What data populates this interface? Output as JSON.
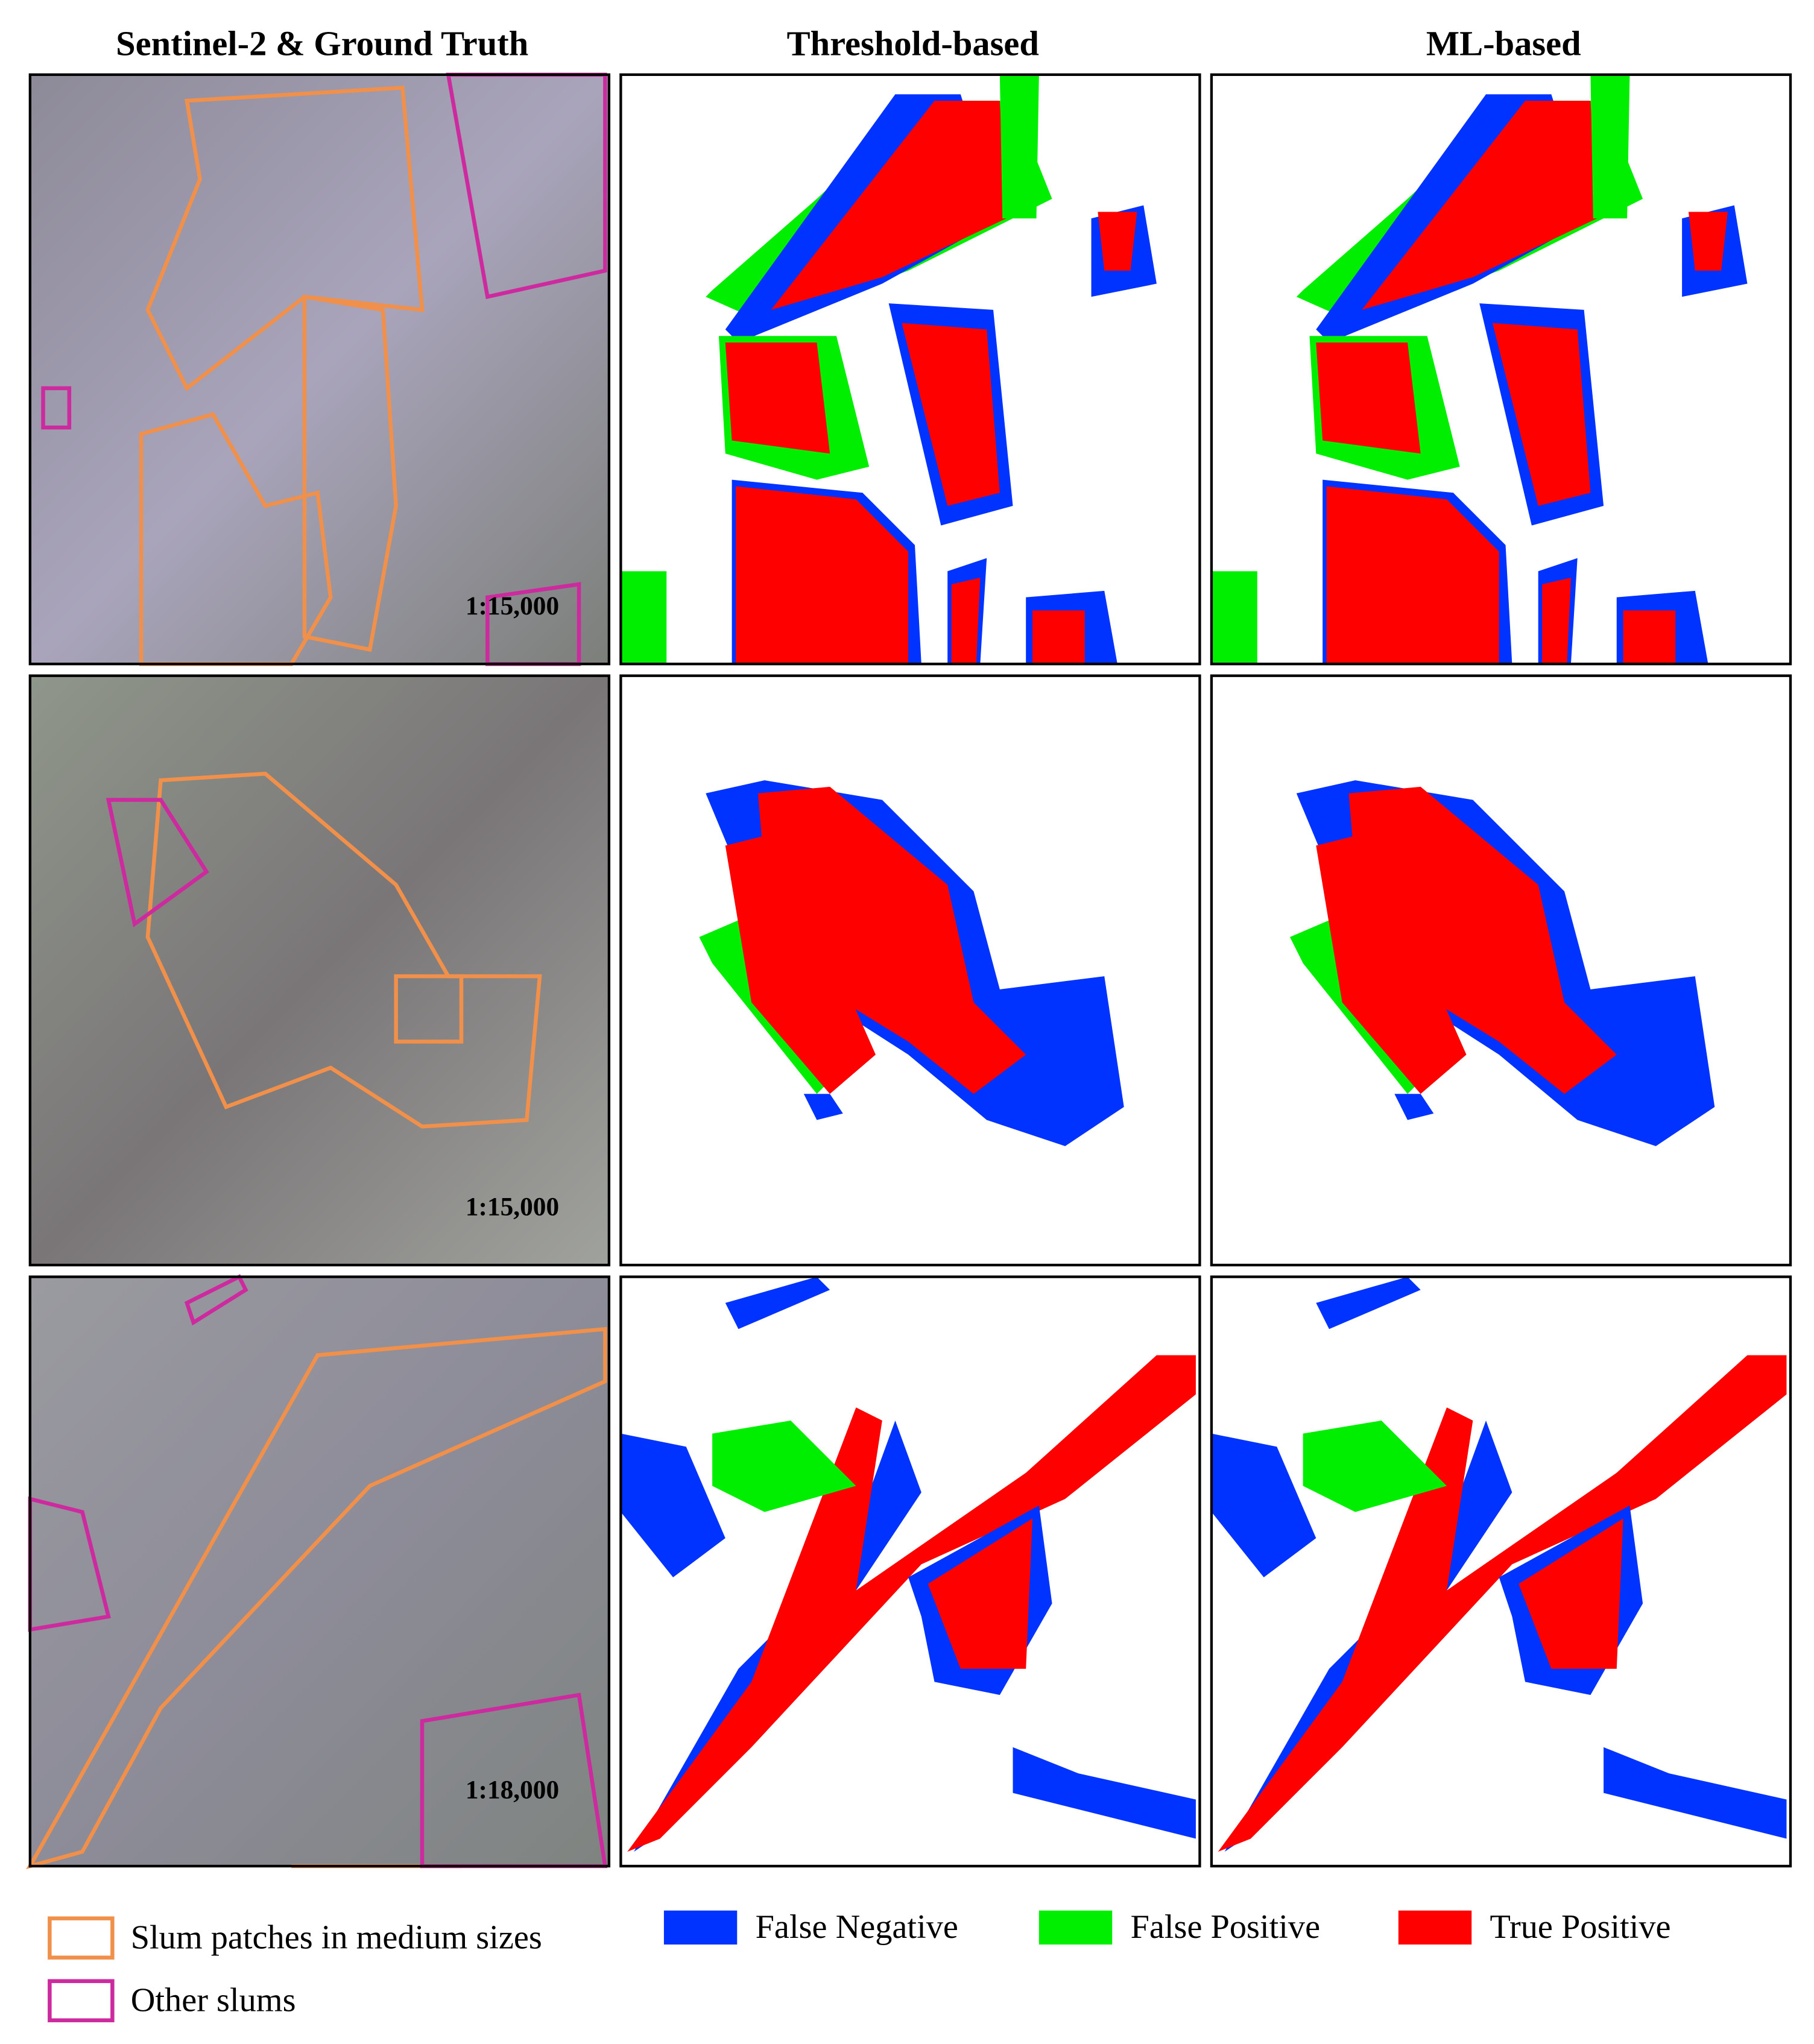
{
  "headers": [
    "Sentinel-2 & Ground Truth",
    "Threshold-based",
    "ML-based"
  ],
  "scales": [
    "1:15,000",
    "1:15,000",
    "1:18,000"
  ],
  "legend": {
    "outlines": [
      {
        "label": "Slum patches in medium sizes",
        "color": "#f0904a"
      },
      {
        "label": "Other slums",
        "color": "#cc2a9e"
      }
    ],
    "classes": [
      {
        "label": "False Negative",
        "color": "#0033ff"
      },
      {
        "label": "False Positive",
        "color": "#00ee00"
      },
      {
        "label": "True Positive",
        "color": "#ff0000"
      }
    ]
  }
}
